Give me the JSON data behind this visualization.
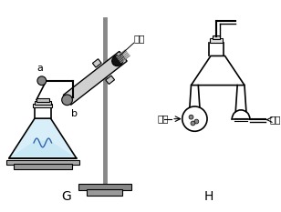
{
  "background": "#ffffff",
  "label_G": "G",
  "label_H": "H",
  "label_a": "a",
  "label_b": "b",
  "label_cotton": "棉花",
  "label_solid": "固体",
  "label_liquid": "液体",
  "flask_color": "#d8eef8",
  "stand_color": "#aaaaaa",
  "tube_color": "#d0d0d0",
  "line_color": "#000000",
  "cotton_color": "#111111",
  "clamp_color": "#cccccc"
}
